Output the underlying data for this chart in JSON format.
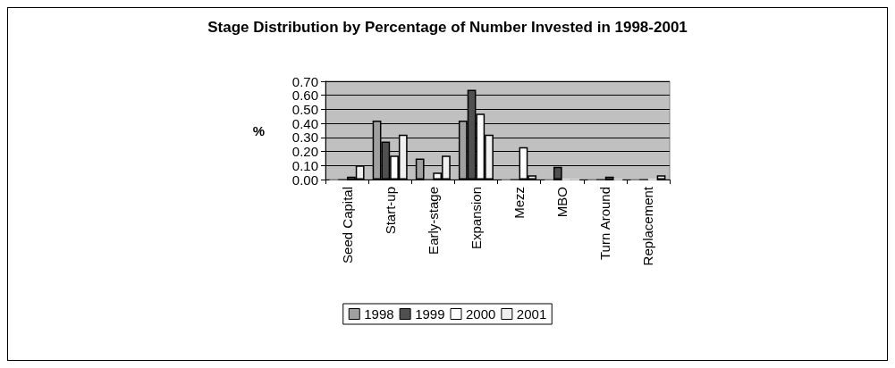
{
  "chart_data": {
    "type": "bar",
    "title": "Stage Distribution by Percentage of Number Invested in 1998-2001",
    "ylabel": "%",
    "categories": [
      "Seed Capital",
      "Start-up",
      "Early-stage",
      "Expansion",
      "Mezz",
      "MBO",
      "Turn Around",
      "Replacement"
    ],
    "series": [
      {
        "name": "1998",
        "color": "#a0a0a0",
        "values": [
          0,
          0.42,
          0.15,
          0.42,
          0,
          0,
          0,
          0
        ]
      },
      {
        "name": "1999",
        "color": "#505050",
        "values": [
          0,
          0.27,
          0,
          0.64,
          0,
          0.09,
          0,
          0
        ]
      },
      {
        "name": "2000",
        "color": "#ffffff",
        "values": [
          0.02,
          0.17,
          0.05,
          0.47,
          0.23,
          0,
          0.02,
          0
        ]
      },
      {
        "name": "2001",
        "color": "#f0f0f0",
        "values": [
          0.1,
          0.32,
          0.17,
          0.32,
          0.03,
          0,
          0,
          0.03
        ]
      }
    ],
    "ylim": [
      0,
      0.7
    ],
    "yticks": [
      {
        "value": 0,
        "label": "0.00"
      },
      {
        "value": 0.1,
        "label": "0.10"
      },
      {
        "value": 0.2,
        "label": "0.20"
      },
      {
        "value": 0.3,
        "label": "0.30"
      },
      {
        "value": 0.4,
        "label": "0.40"
      },
      {
        "value": 0.5,
        "label": "0.50"
      },
      {
        "value": 0.6,
        "label": "0.60"
      },
      {
        "value": 0.7,
        "label": "0.70"
      }
    ],
    "grid": "y",
    "legend": "bottom"
  }
}
